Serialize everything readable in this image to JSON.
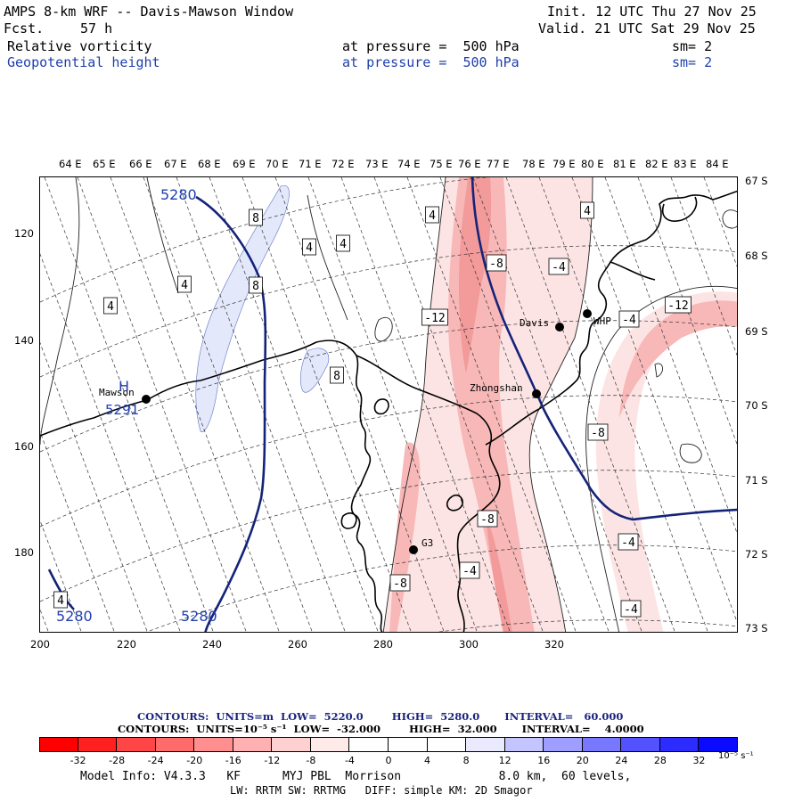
{
  "header": {
    "title": "AMPS 8-km WRF -- Davis-Mawson Window",
    "fcst_label": "Fcst.",
    "fcst_value": "57 h",
    "init": "Init. 12 UTC Thu 27 Nov 25",
    "valid": "Valid. 21 UTC Sat 29 Nov 25",
    "field1": {
      "name": "Relative vorticity",
      "level": "at pressure =  500 hPa",
      "sm": "sm= 2"
    },
    "field2": {
      "name": "Geopotential height",
      "level": "at pressure =  500 hPa",
      "sm": "sm= 2"
    }
  },
  "map": {
    "lon_labels": [
      "64 E",
      "65 E",
      "66 E",
      "67 E",
      "68 E",
      "69 E",
      "70 E",
      "71 E",
      "72 E",
      "73 E",
      "74 E",
      "75 E",
      "76 E",
      "77 E",
      "78 E",
      "79 E",
      "80 E",
      "81 E",
      "82 E",
      "83 E",
      "84 E"
    ],
    "lat_labels": [
      "67 S",
      "68 S",
      "69 S",
      "70 S",
      "71 S",
      "72 S",
      "73 S"
    ],
    "y_ticks": [
      "120",
      "140",
      "160",
      "180"
    ],
    "x_ticks": [
      "200",
      "220",
      "240",
      "260",
      "280",
      "300",
      "320"
    ],
    "stations": [
      {
        "name": "Mawson"
      },
      {
        "name": "Davis"
      },
      {
        "name": "WHP"
      },
      {
        "name": "Zhongshan"
      },
      {
        "name": "G3"
      }
    ],
    "high_marker": "H",
    "high_value": "5291",
    "height_labels": [
      "5280",
      "5280",
      "5280"
    ],
    "vort_labels": [
      "8",
      "8",
      "8",
      "4",
      "4",
      "4",
      "4",
      "4",
      "4",
      "4",
      "-4",
      "-8",
      "-12",
      "-4",
      "-4",
      "-12",
      "-8",
      "-8",
      "-4",
      "-4",
      "-8"
    ],
    "colors": {
      "height_contour": "#14237a",
      "coast": "#000000",
      "neg_shade_1": "#fde4e4",
      "neg_shade_2": "#f8b2b2",
      "neg_shade_3": "#f39494",
      "pos_shade": "#e4e8fb"
    }
  },
  "contour_info": {
    "line1_label": "CONTOURS:  UNITS=m  LOW=  5220.0        HIGH=  5280.0       INTERVAL=   60.000",
    "line2_label": "CONTOURS:  UNITS=10⁻⁵ s⁻¹  LOW=  -32.000        HIGH=  32.000       INTERVAL=    4.0000"
  },
  "colorbar": {
    "labels": [
      "-32",
      "-28",
      "-24",
      "-20",
      "-16",
      "-12",
      "-8",
      "-4",
      "0",
      "4",
      "8",
      "12",
      "16",
      "20",
      "24",
      "28",
      "32"
    ],
    "units": "10⁻⁵ s⁻¹",
    "colors": [
      "#ff0000",
      "#ff2020",
      "#ff4545",
      "#ff6a6a",
      "#ff8f8f",
      "#ffb0b0",
      "#ffd0d0",
      "#ffeaea",
      "#ffffff",
      "#ffffff",
      "#eaeaff",
      "#c4c4ff",
      "#9e9eff",
      "#7878ff",
      "#5252ff",
      "#2c2cff",
      "#0a0aff"
    ]
  },
  "footer": {
    "line1": "Model Info: V4.3.3   KF      MYJ PBL  Morrison              8.0 km,  60 levels,",
    "line2": "LW: RRTM SW: RRTMG   DIFF: simple KM: 2D Smagor"
  }
}
